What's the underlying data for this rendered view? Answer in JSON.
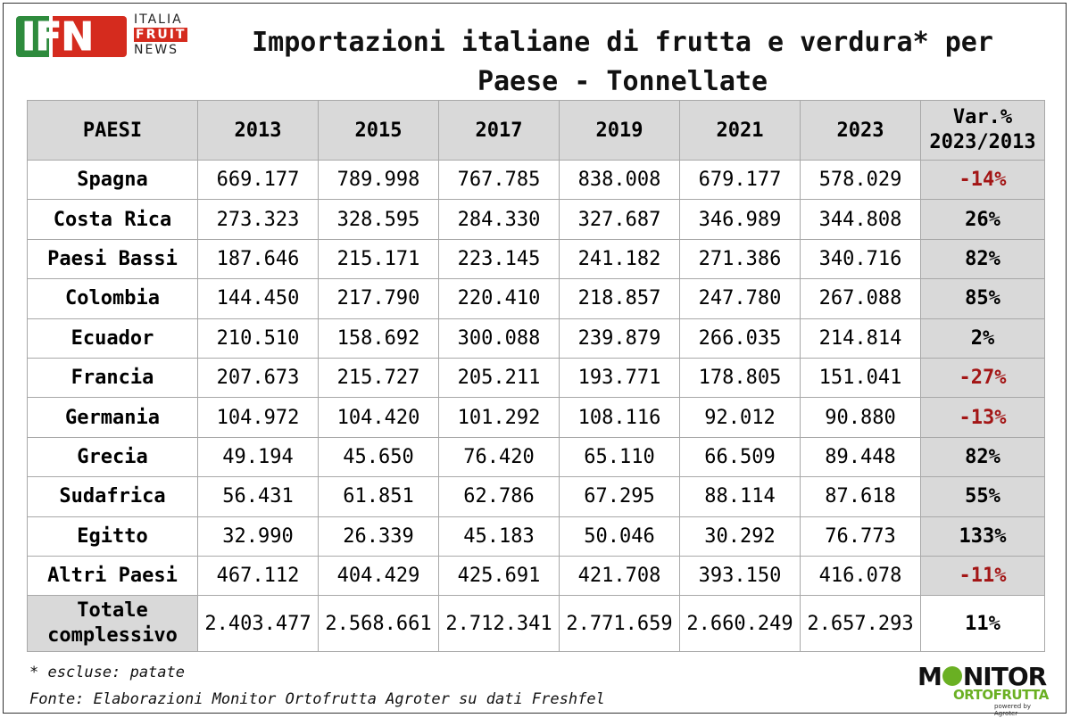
{
  "logo_left": {
    "letters": "IFN",
    "line1": "ITALIA",
    "line2": "FRUIT",
    "line3": "NEWS"
  },
  "title_line1": "Importazioni italiane di frutta e verdura* per",
  "title_line2": "Paese - Tonnellate",
  "chart_data": {
    "type": "table",
    "columns": [
      "PAESI",
      "2013",
      "2015",
      "2017",
      "2019",
      "2021",
      "2023"
    ],
    "var_header_line1": "Var.%",
    "var_header_line2": "2023/2013",
    "rows": [
      {
        "country": "Spagna",
        "values": [
          "669.177",
          "789.998",
          "767.785",
          "838.008",
          "679.177",
          "578.029"
        ],
        "var": "-14%",
        "negative": true
      },
      {
        "country": "Costa Rica",
        "values": [
          "273.323",
          "328.595",
          "284.330",
          "327.687",
          "346.989",
          "344.808"
        ],
        "var": "26%",
        "negative": false
      },
      {
        "country": "Paesi Bassi",
        "values": [
          "187.646",
          "215.171",
          "223.145",
          "241.182",
          "271.386",
          "340.716"
        ],
        "var": "82%",
        "negative": false
      },
      {
        "country": "Colombia",
        "values": [
          "144.450",
          "217.790",
          "220.410",
          "218.857",
          "247.780",
          "267.088"
        ],
        "var": "85%",
        "negative": false
      },
      {
        "country": "Ecuador",
        "values": [
          "210.510",
          "158.692",
          "300.088",
          "239.879",
          "266.035",
          "214.814"
        ],
        "var": "2%",
        "negative": false
      },
      {
        "country": "Francia",
        "values": [
          "207.673",
          "215.727",
          "205.211",
          "193.771",
          "178.805",
          "151.041"
        ],
        "var": "-27%",
        "negative": true
      },
      {
        "country": "Germania",
        "values": [
          "104.972",
          "104.420",
          "101.292",
          "108.116",
          "92.012",
          "90.880"
        ],
        "var": "-13%",
        "negative": true
      },
      {
        "country": "Grecia",
        "values": [
          "49.194",
          "45.650",
          "76.420",
          "65.110",
          "66.509",
          "89.448"
        ],
        "var": "82%",
        "negative": false
      },
      {
        "country": "Sudafrica",
        "values": [
          "56.431",
          "61.851",
          "62.786",
          "67.295",
          "88.114",
          "87.618"
        ],
        "var": "55%",
        "negative": false
      },
      {
        "country": "Egitto",
        "values": [
          "32.990",
          "26.339",
          "45.183",
          "50.046",
          "30.292",
          "76.773"
        ],
        "var": "133%",
        "negative": false
      },
      {
        "country": "Altri Paesi",
        "values": [
          "467.112",
          "404.429",
          "425.691",
          "421.708",
          "393.150",
          "416.078"
        ],
        "var": "-11%",
        "negative": true
      }
    ],
    "total": {
      "label_line1": "Totale",
      "label_line2": "complessivo",
      "values": [
        "2.403.477",
        "2.568.661",
        "2.712.341",
        "2.771.659",
        "2.660.249",
        "2.657.293"
      ],
      "var": "11%"
    },
    "negative_color": "#a31515",
    "header_bg": "#d9d9d9"
  },
  "note": "* escluse: patate",
  "source": "Fonte: Elaborazioni Monitor Ortofrutta Agroter su dati Freshfel",
  "logo_right": {
    "word1_a": "M",
    "word1_b": "NITOR",
    "word2": "ORTOFRUTTA",
    "tagline": "powered by Agroter"
  }
}
